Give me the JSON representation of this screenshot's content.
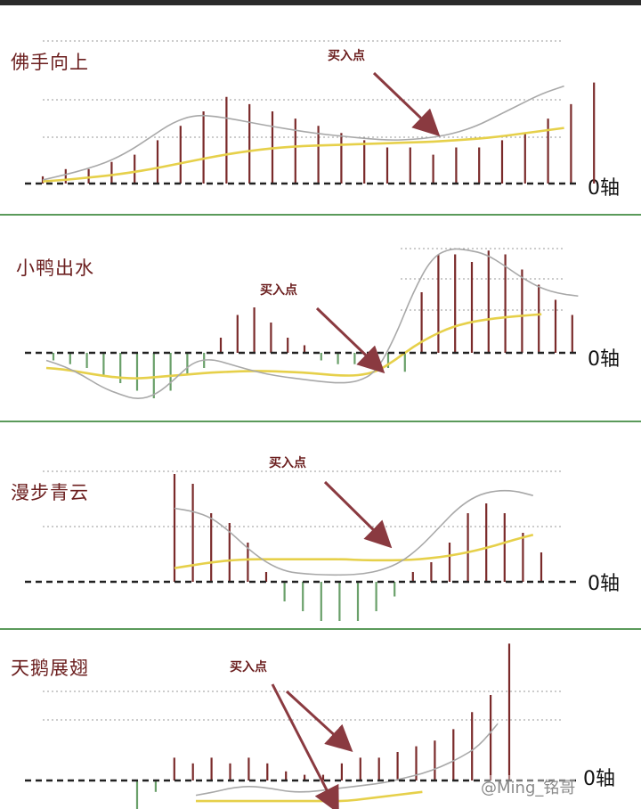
{
  "zero_axis_label": "0轴",
  "watermark": "@Ming_铭哥",
  "colors": {
    "bar_positive": "#7a2a2a",
    "bar_negative": "#6aa06a",
    "fast_line": "#a8a8a8",
    "slow_line": "#e6d04a",
    "arrow": "#8a3a40",
    "separator": "#5a9a5a"
  },
  "chart_data": [
    {
      "type": "bar",
      "title": "佛手向上",
      "annotations": [
        "买入点"
      ],
      "values": [
        1,
        2,
        2,
        3,
        4,
        6,
        8,
        10,
        12,
        11,
        10,
        9,
        8,
        7,
        6,
        5,
        5,
        4,
        5,
        5,
        6,
        7,
        9,
        11,
        14
      ],
      "fast_line": [
        0.5,
        1.2,
        2,
        3,
        4.5,
        6.5,
        8.5,
        9.5,
        9.3,
        8.8,
        8.2,
        7.7,
        7.2,
        6.8,
        6.5,
        6.2,
        6.0,
        6.1,
        6.4,
        7.0,
        8.0,
        9.5,
        11.0,
        12.5,
        13.5
      ],
      "slow_line": [
        0.3,
        0.5,
        0.8,
        1.1,
        1.5,
        2.0,
        2.6,
        3.2,
        3.8,
        4.3,
        4.7,
        5.0,
        5.2,
        5.3,
        5.4,
        5.5,
        5.6,
        5.7,
        5.8,
        6.0,
        6.2,
        6.5,
        6.9,
        7.3,
        7.7
      ],
      "ylim": [
        -1,
        14
      ]
    },
    {
      "type": "bar",
      "title": "小鸭出水",
      "annotations": [
        "买入点"
      ],
      "values": [
        -1,
        -1.5,
        -2,
        -3,
        -4,
        -5,
        -6,
        -5,
        -3,
        -2,
        2,
        5,
        6,
        4,
        2,
        1,
        -1,
        -1.5,
        -1.5,
        -2,
        -2,
        -2.5,
        8,
        13,
        13,
        12,
        13.5,
        13,
        11,
        9,
        7,
        5
      ],
      "fast_line": [
        -1,
        -1.8,
        -3,
        -4.5,
        -5.5,
        -6.2,
        -5.5,
        -3.5,
        -1.2,
        -0.8,
        -1.5,
        -2.2,
        -2.8,
        -3.2,
        -3.5,
        -3.8,
        -4.0,
        -3.8,
        -2.5,
        2.0,
        8.0,
        12.5,
        13.8,
        13.6,
        13.0,
        11.5,
        9.8,
        8.5,
        7.8,
        7.5
      ],
      "slow_line": [
        -2.0,
        -2.2,
        -2.6,
        -3.0,
        -3.3,
        -3.4,
        -3.2,
        -3.0,
        -2.8,
        -2.6,
        -2.5,
        -2.4,
        -2.4,
        -2.5,
        -2.6,
        -2.8,
        -3.0,
        -3.0,
        -2.5,
        -1.0,
        0.8,
        2.2,
        3.3,
        4.0,
        4.4,
        4.7,
        4.9,
        5.1
      ],
      "ylim": [
        -7,
        15
      ]
    },
    {
      "type": "bar",
      "title": "漫步青云",
      "annotations": [
        "买入点"
      ],
      "values": [
        11,
        10,
        7,
        6,
        4,
        1,
        -2,
        -3,
        -4,
        -4,
        -4,
        -3,
        -1.5,
        1,
        2,
        4,
        7,
        8,
        7,
        5,
        3
      ],
      "fast_line": [
        7.5,
        7.2,
        6.5,
        5.0,
        3.2,
        1.8,
        1.0,
        0.8,
        0.7,
        0.7,
        0.8,
        1.2,
        2.0,
        3.5,
        5.5,
        7.5,
        8.8,
        9.3,
        9.3,
        8.8
      ],
      "slow_line": [
        1.4,
        1.7,
        2.0,
        2.2,
        2.3,
        2.3,
        2.3,
        2.3,
        2.3,
        2.3,
        2.2,
        2.2,
        2.2,
        2.3,
        2.5,
        2.8,
        3.2,
        3.7,
        4.3,
        4.8
      ],
      "ylim": [
        -5,
        12
      ]
    },
    {
      "type": "bar",
      "title": "天鹅展翅",
      "annotations": [
        "买入点"
      ],
      "values": [
        -2.5,
        -1,
        2,
        1.5,
        2,
        1.5,
        2,
        1.5,
        0.8,
        0.5,
        0.5,
        1.5,
        2,
        2,
        2.5,
        3,
        3.5,
        4.5,
        6,
        7.5,
        12
      ],
      "fast_line": [
        -1.3,
        -1.0,
        -0.6,
        -0.5,
        -0.7,
        -1.0,
        -1.0,
        -0.8,
        -0.6,
        -0.4,
        -0.2,
        0.2,
        0.6,
        1.2,
        2.0,
        3.0,
        5.0
      ],
      "slow_line": [
        -1.8,
        -1.8,
        -1.8,
        -1.8,
        -1.8,
        -1.8,
        -1.8,
        -1.8,
        -1.8,
        -1.6,
        -1.4,
        -1.2,
        -1.0
      ],
      "ylim": [
        -3,
        12
      ]
    }
  ]
}
